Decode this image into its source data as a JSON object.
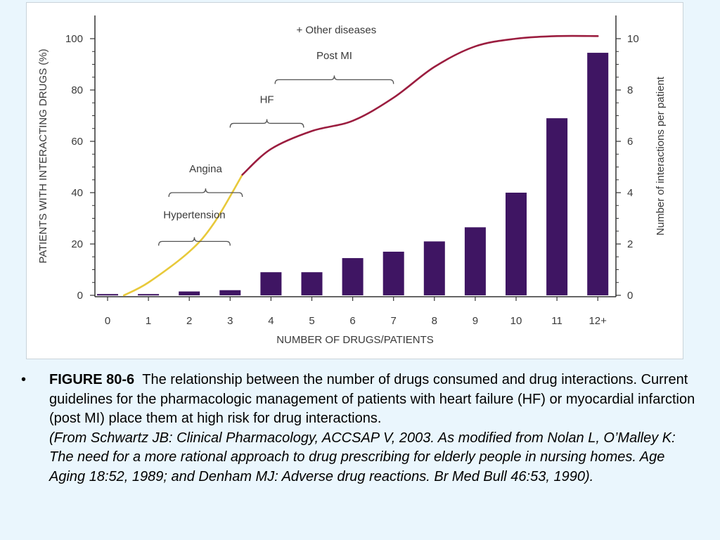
{
  "chart_data": {
    "type": "bar+line",
    "categories": [
      "0",
      "1",
      "2",
      "3",
      "4",
      "5",
      "6",
      "7",
      "8",
      "9",
      "10",
      "11",
      "12+"
    ],
    "bars": {
      "axis": "right",
      "values": [
        0.05,
        0.05,
        0.15,
        0.2,
        0.9,
        0.9,
        1.45,
        1.7,
        2.1,
        2.65,
        4.0,
        6.9,
        9.45
      ],
      "color": "#3f1563"
    },
    "curve": {
      "axis": "left",
      "points": [
        [
          0.4,
          0
        ],
        [
          1,
          5
        ],
        [
          2,
          17
        ],
        [
          2.6,
          28
        ],
        [
          3.3,
          47
        ],
        [
          4,
          57
        ],
        [
          5,
          64
        ],
        [
          6,
          68
        ],
        [
          7,
          77
        ],
        [
          8,
          89
        ],
        [
          9,
          97
        ],
        [
          10,
          100
        ],
        [
          11,
          101
        ],
        [
          12,
          101
        ]
      ],
      "color_early": "#e8c93a",
      "color_late": "#9b1d3f",
      "split_x": 3.3
    },
    "left_axis": {
      "title": "PATIENTS WITH INTERACTING DRUGS (%)",
      "ticks": [
        "0",
        "20",
        "40",
        "60",
        "80",
        "100"
      ],
      "range": [
        0,
        100
      ]
    },
    "right_axis": {
      "title": "Number of interactions per patient",
      "ticks": [
        "0",
        "2",
        "4",
        "6",
        "8",
        "10"
      ],
      "range": [
        0,
        10
      ]
    },
    "xlabel": "NUMBER OF DRUGS/PATIENTS",
    "annotations": [
      {
        "label": "Hypertension",
        "from": 1.25,
        "to": 3.0,
        "y": 21,
        "label_y": 30
      },
      {
        "label": "Angina",
        "from": 1.5,
        "to": 3.3,
        "y": 40,
        "label_y": 48
      },
      {
        "label": "HF",
        "from": 3.0,
        "to": 4.8,
        "y": 67,
        "label_y": 75
      },
      {
        "label": "Post MI",
        "from": 4.1,
        "to": 7.0,
        "y": 84,
        "label_y": 92
      },
      {
        "label": "+ Other diseases",
        "from": null,
        "to": null,
        "y": null,
        "label_y": 102,
        "label_x": 5.6
      }
    ]
  },
  "caption": {
    "bullet": "•",
    "figure_label": "FIGURE 80-6",
    "text": "The relationship between the number of drugs consumed and drug interactions. Current guidelines for the pharmacologic management of patients with heart failure (HF) or myocardial infarction (post MI) place them at high risk for drug interactions.",
    "source": "(From Schwartz JB: Clinical Pharmacology, ACCSAP V, 2003. As modified from Nolan L, O’Malley K: The need for a more rational approach to drug prescribing for elderly people in nursing homes. Age Aging 18:52, 1989; and Denham MJ: Adverse drug reactions. Br Med Bull 46:53, 1990)."
  }
}
